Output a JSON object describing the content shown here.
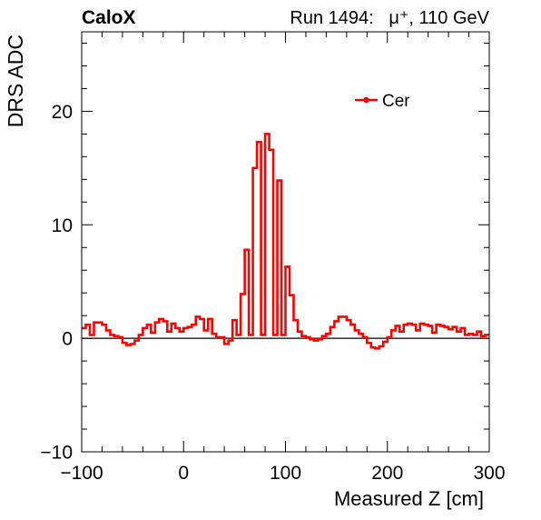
{
  "header": {
    "left": "CaloX",
    "right": "Run 1494:   μ⁺, 110 GeV"
  },
  "chart_data": {
    "type": "line",
    "step": true,
    "title": "",
    "xlabel": "Measured Z [cm]",
    "ylabel": "DRS ADC",
    "xlim": [
      -100,
      300
    ],
    "ylim": [
      -10,
      27
    ],
    "xticks": [
      -100,
      0,
      100,
      200,
      300
    ],
    "xtick_labels": [
      "−100",
      "0",
      "100",
      "200",
      "300"
    ],
    "yticks": [
      -10,
      0,
      10,
      20
    ],
    "ytick_labels": [
      "−10",
      "0",
      "10",
      "20"
    ],
    "grid": false,
    "legend_position": "top-right",
    "bin_width": 4,
    "x_start": -100,
    "series": [
      {
        "name": "Cer",
        "color": "#ff0000",
        "values": [
          0.9,
          1.2,
          0.3,
          1.4,
          1.4,
          1.2,
          0.7,
          0.3,
          0.2,
          0.1,
          -0.4,
          -0.6,
          -0.5,
          -0.2,
          0.3,
          0.9,
          1.2,
          0.5,
          1.4,
          1.7,
          1.5,
          0.6,
          1.3,
          0.9,
          0.6,
          0.9,
          1.0,
          1.2,
          1.9,
          1.7,
          0.7,
          1.7,
          0.4,
          0.1,
          0.1,
          -0.5,
          -0.2,
          1.6,
          0.3,
          3.9,
          7.8,
          0.3,
          15.0,
          17.3,
          0.3,
          18.0,
          16.6,
          0.3,
          13.9,
          0.3,
          6.3,
          3.8,
          1.6,
          0.6,
          0.2,
          0.1,
          -0.1,
          -0.2,
          -0.1,
          0.2,
          0.4,
          1.0,
          1.5,
          1.9,
          1.9,
          1.6,
          1.2,
          0.7,
          0.4,
          0.1,
          -0.4,
          -0.8,
          -0.9,
          -0.7,
          -0.3,
          0.1,
          0.7,
          1.1,
          0.6,
          1.2,
          1.3,
          1.2,
          0.7,
          1.3,
          1.2,
          1.1,
          0.5,
          1.2,
          1.1,
          1.0,
          0.8,
          1.0,
          0.6,
          0.9,
          0.3,
          0.4,
          0.3,
          0.6,
          0.2,
          0.3
        ]
      }
    ]
  }
}
